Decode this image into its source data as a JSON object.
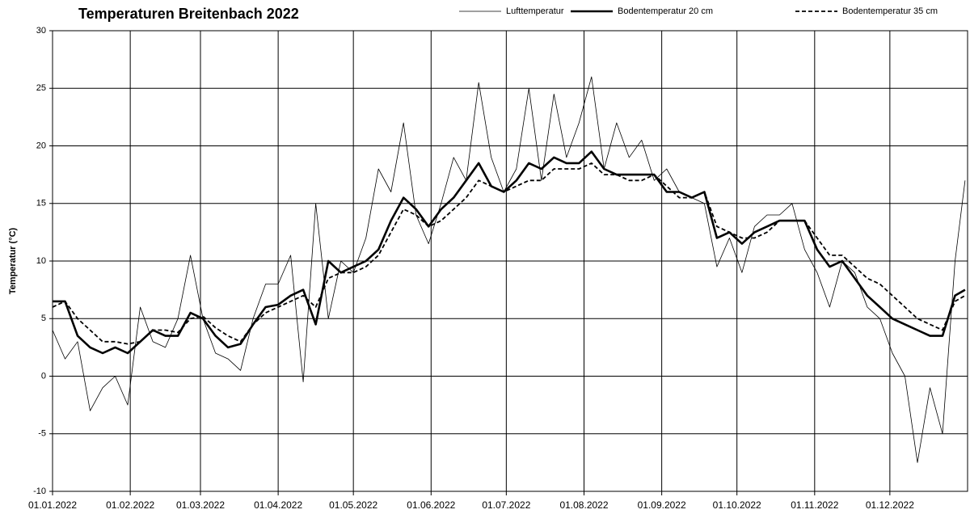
{
  "chart_data": {
    "type": "line",
    "title": "Temperaturen Breitenbach 2022",
    "ylabel": "Temperatur (°C)",
    "x": [
      0,
      5,
      10,
      15,
      20,
      25,
      30,
      35,
      40,
      45,
      50,
      55,
      60,
      65,
      70,
      75,
      80,
      85,
      90,
      95,
      100,
      105,
      110,
      115,
      120,
      125,
      130,
      135,
      140,
      145,
      150,
      155,
      160,
      165,
      170,
      175,
      180,
      185,
      190,
      195,
      200,
      205,
      210,
      215,
      220,
      225,
      230,
      235,
      240,
      245,
      250,
      255,
      260,
      265,
      270,
      275,
      280,
      285,
      290,
      295,
      300,
      305,
      310,
      315,
      320,
      325,
      330,
      335,
      340,
      345,
      350,
      355,
      360,
      364
    ],
    "xlim": [
      0,
      365
    ],
    "xticks": [
      {
        "value": 0,
        "label": "01.01.2022"
      },
      {
        "value": 31,
        "label": "01.02.2022"
      },
      {
        "value": 59,
        "label": "01.03.2022"
      },
      {
        "value": 90,
        "label": "01.04.2022"
      },
      {
        "value": 120,
        "label": "01.05.2022"
      },
      {
        "value": 151,
        "label": "01.06.2022"
      },
      {
        "value": 181,
        "label": "01.07.2022"
      },
      {
        "value": 212,
        "label": "01.08.2022"
      },
      {
        "value": 243,
        "label": "01.09.2022"
      },
      {
        "value": 273,
        "label": "01.10.2022"
      },
      {
        "value": 304,
        "label": "01.11.2022"
      },
      {
        "value": 334,
        "label": "01.12.2022"
      }
    ],
    "ylim": [
      -10,
      30
    ],
    "yticks": [
      -10,
      -5,
      0,
      5,
      10,
      15,
      20,
      25,
      30
    ],
    "grid": true,
    "series": [
      {
        "name": "Lufttemperatur",
        "color": "#000000",
        "values": [
          4,
          1.5,
          3,
          -3,
          -1,
          0,
          -2.5,
          6,
          3,
          2.5,
          5,
          10.5,
          5,
          2,
          1.5,
          0.5,
          5,
          8,
          8,
          10.5,
          -0.5,
          15,
          5,
          10,
          9,
          12,
          18,
          16,
          22,
          14,
          11.5,
          15,
          19,
          17,
          25.5,
          19,
          16,
          18,
          25,
          17,
          24.5,
          19,
          22,
          26,
          18,
          22,
          19,
          20.5,
          17,
          18,
          16,
          15.5,
          15,
          9.5,
          12,
          9,
          13,
          14,
          14,
          15,
          11,
          9,
          6,
          10,
          9,
          6,
          5,
          2,
          0,
          -7.5,
          -1,
          -5,
          10,
          17
        ]
      },
      {
        "name": "Bodentemperatur 20 cm",
        "color": "#000000",
        "values": [
          6.5,
          6.5,
          3.5,
          2.5,
          2,
          2.5,
          2,
          3,
          4,
          3.5,
          3.5,
          5.5,
          5,
          3.5,
          2.5,
          2.8,
          4.5,
          6,
          6.2,
          7,
          7.5,
          4.5,
          10,
          9,
          9.5,
          10,
          11,
          13.5,
          15.5,
          14.5,
          13,
          14.5,
          15.5,
          17,
          18.5,
          16.5,
          16,
          17,
          18.5,
          18,
          19,
          18.5,
          18.5,
          19.5,
          18,
          17.5,
          17.5,
          17.5,
          17.5,
          16,
          16,
          15.5,
          16,
          12,
          12.5,
          11.5,
          12.5,
          13,
          13.5,
          13.5,
          13.5,
          11,
          9.5,
          10,
          8.5,
          7,
          6,
          5,
          4.5,
          4,
          3.5,
          3.5,
          7,
          7.5
        ]
      },
      {
        "name": "Bodentemperatur 35 cm",
        "color": "#000000",
        "values": [
          6,
          6.5,
          5,
          4,
          3,
          3,
          2.8,
          3,
          4,
          4,
          3.8,
          5,
          5.2,
          4.2,
          3.5,
          3,
          4.5,
          5.5,
          6,
          6.5,
          7,
          6,
          8.5,
          9,
          9,
          9.5,
          10.5,
          12.5,
          14.5,
          14,
          13,
          13.5,
          14.5,
          15.5,
          17,
          16.5,
          16,
          16.5,
          17,
          17,
          18,
          18,
          18,
          18.5,
          17.5,
          17.5,
          17,
          17,
          17.5,
          16.5,
          15.5,
          15.5,
          16,
          13,
          12.5,
          12,
          12,
          12.5,
          13.5,
          13.5,
          13.5,
          12,
          10.5,
          10.5,
          9.5,
          8.5,
          8,
          7,
          6,
          5,
          4.5,
          4,
          6.5,
          7
        ]
      }
    ]
  }
}
